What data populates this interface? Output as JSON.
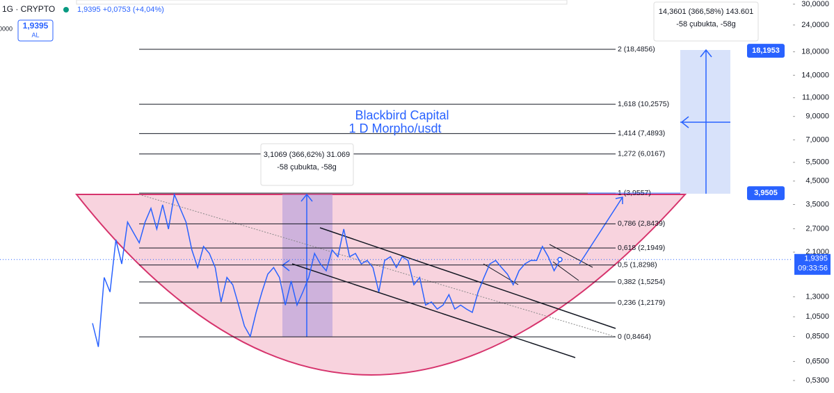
{
  "header": {
    "symbol": "1G · CRYPTO",
    "quote": "1,9395 +0,0753 (+4,04%)",
    "buy_price": "1,9395",
    "buy_label": "AL",
    "cut_label": "0000"
  },
  "title": {
    "line1": "Blackbird Capital",
    "line2": "1 D Morpho/usdt"
  },
  "price_axis": {
    "scale": "log",
    "lim": [
      0.53,
      30
    ],
    "ticks": [
      {
        "value": 30,
        "label": "30,0000"
      },
      {
        "value": 24,
        "label": "24,0000"
      },
      {
        "value": 18,
        "label": "18,0000"
      },
      {
        "value": 14,
        "label": "14,0000"
      },
      {
        "value": 11,
        "label": "11,0000"
      },
      {
        "value": 9,
        "label": "9,0000"
      },
      {
        "value": 7,
        "label": "7,0000"
      },
      {
        "value": 5.5,
        "label": "5,5000"
      },
      {
        "value": 4.5,
        "label": "4,5000"
      },
      {
        "value": 3.5,
        "label": "3,5000"
      },
      {
        "value": 2.7,
        "label": "2,7000"
      },
      {
        "value": 2.1,
        "label": "2,1000"
      },
      {
        "value": 1.3,
        "label": "1,3000"
      },
      {
        "value": 1.05,
        "label": "1,0500"
      },
      {
        "value": 0.85,
        "label": "0,8500"
      },
      {
        "value": 0.65,
        "label": "0,6500"
      },
      {
        "value": 0.53,
        "label": "0,5300"
      }
    ],
    "last_price": {
      "value": 1.9395,
      "label": "1,9395",
      "time": "09:33:56"
    },
    "tags": [
      {
        "value": 18.1953,
        "label": "18,1953"
      },
      {
        "value": 3.9505,
        "label": "3,9505"
      }
    ]
  },
  "price_series": {
    "color": "#2962ff",
    "values": [
      0.98,
      0.76,
      1.6,
      1.37,
      2.4,
      1.85,
      2.9,
      2.59,
      2.32,
      2.9,
      3.36,
      2.69,
      3.49,
      2.69,
      3.9,
      3.36,
      2.9,
      2.15,
      1.78,
      2.23,
      2.07,
      1.78,
      1.23,
      1.6,
      1.48,
      1.19,
      0.95,
      0.85,
      1.1,
      1.37,
      1.66,
      1.78,
      1.6,
      1.19,
      1.54,
      1.19,
      1.37,
      1.6,
      2.07,
      1.85,
      1.72,
      2.15,
      2.0,
      2.69,
      2.0,
      2.07,
      1.85,
      1.92,
      1.78,
      1.37,
      1.92,
      2.0,
      1.78,
      2.0,
      1.92,
      1.48,
      1.6,
      1.19,
      1.23,
      1.14,
      1.19,
      1.33,
      1.14,
      1.19,
      1.14,
      1.1,
      1.37,
      1.6,
      1.85,
      1.92,
      1.78,
      1.66,
      1.48,
      1.72,
      1.85,
      1.92,
      1.92,
      2.23,
      2.0,
      1.72,
      1.92
    ]
  },
  "fib_levels": [
    {
      "value": 18.4856,
      "label": "2 (18,4856)"
    },
    {
      "value": 10.2575,
      "label": "1,618 (10,2575)"
    },
    {
      "value": 7.4893,
      "label": "1,414 (7,4893)"
    },
    {
      "value": 6.0167,
      "label": "1,272 (6,0167)"
    },
    {
      "value": 3.9557,
      "label": "1 (3,9557)"
    },
    {
      "value": 2.8439,
      "label": "0,786 (2,8439)"
    },
    {
      "value": 2.1949,
      "label": "0,618 (2,1949)"
    },
    {
      "value": 1.8298,
      "label": "0,5 (1,8298)"
    },
    {
      "value": 1.5254,
      "label": "0,382 (1,5254)"
    },
    {
      "value": 1.2179,
      "label": "0,236 (1,2179)"
    },
    {
      "value": 0.8464,
      "label": "0 (0,8464)"
    }
  ],
  "measures": [
    {
      "line1": "3,1069 (366,62%) 31.069",
      "line2": "-58 çubukta, -58g"
    },
    {
      "line1": "14,3601 (366,58%) 143.601",
      "line2": "-58 çubukta, -58g"
    }
  ]
}
